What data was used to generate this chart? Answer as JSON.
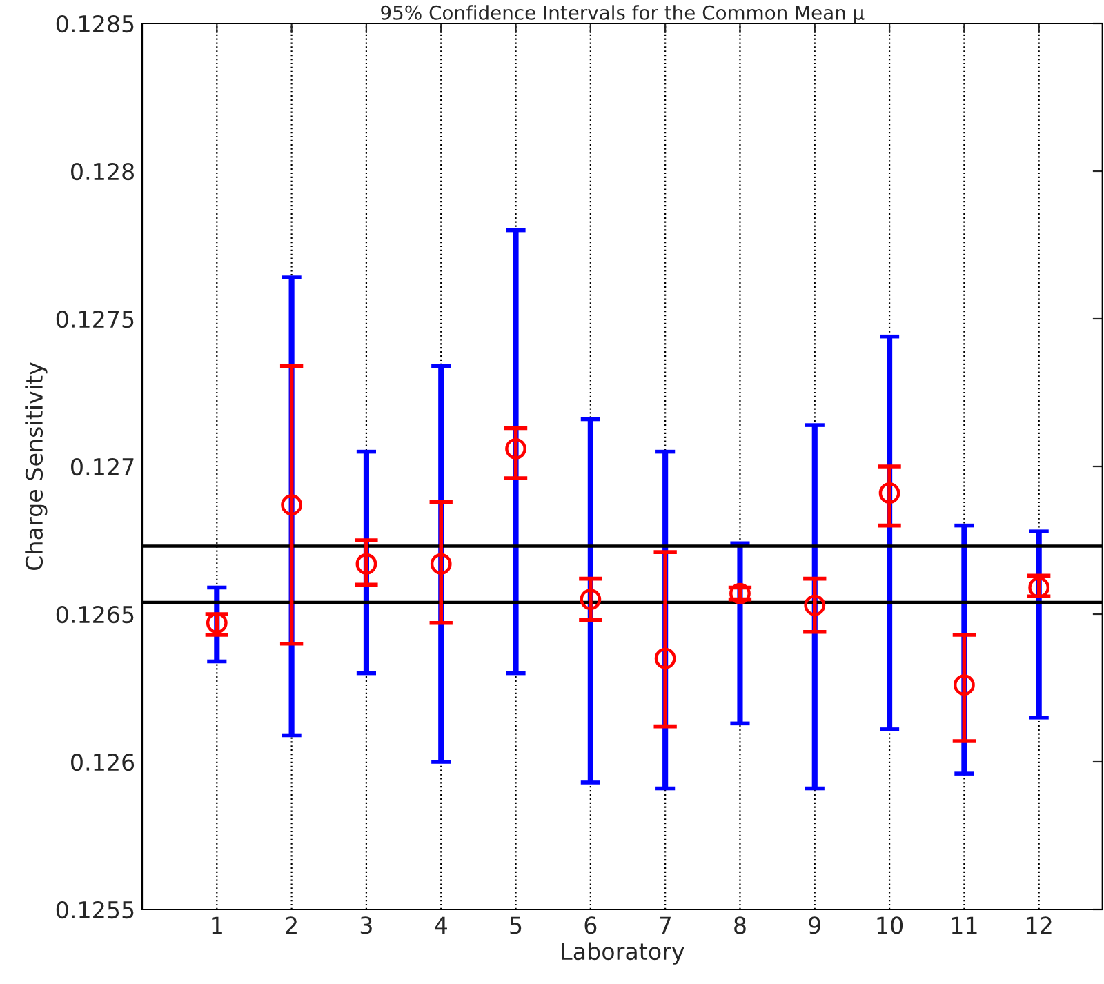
{
  "chart_data": {
    "type": "scatter",
    "title": "95% Confidence Intervals for the Common Mean μ",
    "xlabel": "Laboratory",
    "ylabel": "Charge Sensitivity",
    "x": [
      1,
      2,
      3,
      4,
      5,
      6,
      7,
      8,
      9,
      10,
      11,
      12
    ],
    "series": [
      {
        "type": "bar",
        "color": "#0000ff",
        "base": [
          0.12634,
          0.12609,
          0.1263,
          0.126,
          0.1263,
          0.12593,
          0.12591,
          0.12613,
          0.12591,
          0.12611,
          0.12596,
          0.12615
        ],
        "values": [
          0.00025,
          0.00155,
          0.00075,
          0.00134,
          0.0015,
          0.00123,
          0.00114,
          0.00061,
          0.00123,
          0.00133,
          0.00084,
          0.00063
        ]
      },
      {
        "color": "#ff0000",
        "marker": "circle",
        "values": [
          0.12647,
          0.12687,
          0.12667,
          0.12667,
          0.12706,
          0.12655,
          0.12635,
          0.12657,
          0.12653,
          0.12691,
          0.12626,
          0.12659
        ],
        "errors": [
          [
            0.12643,
            0.1265
          ],
          [
            0.1264,
            0.12734
          ],
          [
            0.1266,
            0.12675
          ],
          [
            0.12647,
            0.12688
          ],
          [
            0.12696,
            0.12713
          ],
          [
            0.12648,
            0.12662
          ],
          [
            0.12612,
            0.12671
          ],
          [
            0.12655,
            0.12659
          ],
          [
            0.12644,
            0.12662
          ],
          [
            0.1268,
            0.127
          ],
          [
            0.12607,
            0.12643
          ],
          [
            0.12656,
            0.12663
          ]
        ]
      }
    ],
    "ref_lines": [
      {
        "axis": "y",
        "value": 0.12673,
        "color": "#000000"
      },
      {
        "axis": "y",
        "value": 0.12654,
        "color": "#000000"
      }
    ],
    "xlim": [
      0,
      12.85
    ],
    "xticks": [
      1,
      2,
      3,
      4,
      5,
      6,
      7,
      8,
      9,
      10,
      11,
      12
    ],
    "ylim": [
      0.1255,
      0.1285
    ],
    "yticks": [
      0.1255,
      0.126,
      0.1265,
      0.127,
      0.1275,
      0.128,
      0.1285
    ],
    "grid": "x"
  }
}
